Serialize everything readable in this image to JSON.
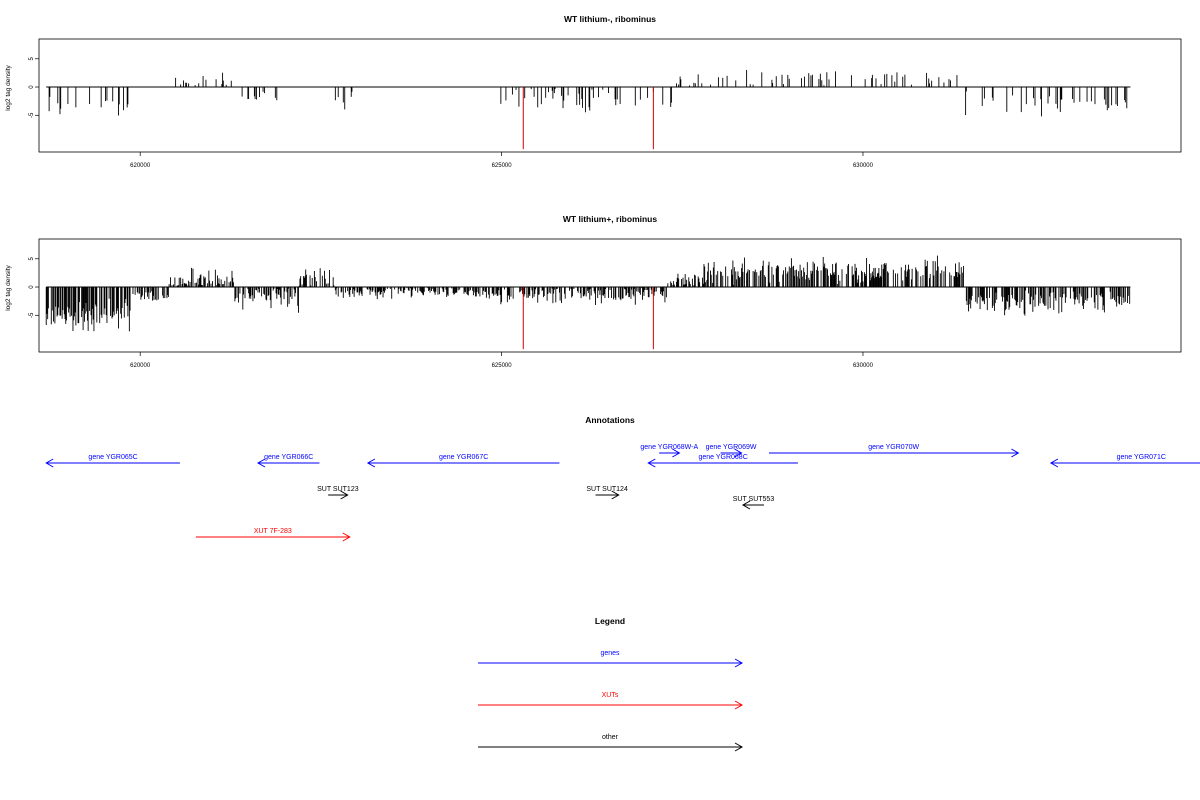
{
  "colors": {
    "gene": "#0000ff",
    "xut": "#ff0000",
    "other": "#000000",
    "signal": "#000000",
    "marker": "#d00000"
  },
  "chart_data": [
    {
      "type": "bar",
      "title": "WT lithium-, ribominus",
      "ylabel": "log2 tag density",
      "xlim": [
        618600,
        634400
      ],
      "ylim": [
        -11.5,
        8.5
      ],
      "x_ticks": [
        620000,
        625000,
        630000
      ],
      "x_tick_labels": [
        "620000",
        "625000",
        "630000"
      ],
      "y_ticks": [
        -5,
        0,
        5
      ],
      "y_tick_labels": [
        "-5",
        "0",
        "5"
      ],
      "x_range": [
        618700,
        633700
      ],
      "density": 0.16,
      "seed": 7,
      "segments": [
        [
          618700,
          619850,
          -3.8,
          1.3
        ],
        [
          619850,
          620450,
          0,
          0
        ],
        [
          620450,
          621300,
          0.9,
          1.0
        ],
        [
          621300,
          621900,
          -2.2,
          1.2
        ],
        [
          621900,
          622600,
          0,
          0
        ],
        [
          622600,
          623000,
          -2.0,
          1.0
        ],
        [
          623000,
          624950,
          0,
          0
        ],
        [
          624950,
          627400,
          -2.0,
          1.5
        ],
        [
          627400,
          628200,
          1.2,
          1.2
        ],
        [
          628200,
          631400,
          1.8,
          1.0
        ],
        [
          631400,
          633700,
          -2.8,
          1.1
        ]
      ],
      "marker_positions": [
        625300,
        627100
      ],
      "marker_value": -11.0
    },
    {
      "type": "bar",
      "title": "WT lithium+, ribominus",
      "ylabel": "log2 tag density",
      "xlim": [
        618600,
        634400
      ],
      "ylim": [
        -11.5,
        8.5
      ],
      "x_ticks": [
        620000,
        625000,
        630000
      ],
      "x_tick_labels": [
        "620000",
        "625000",
        "630000"
      ],
      "y_ticks": [
        -5,
        0,
        5
      ],
      "y_tick_labels": [
        "-5",
        "0",
        "5"
      ],
      "x_range": [
        618700,
        633700
      ],
      "density": 0.6,
      "seed": 21,
      "segments": [
        [
          618700,
          619900,
          -5.0,
          1.6
        ],
        [
          619900,
          620400,
          -1.5,
          0.8
        ],
        [
          620400,
          621300,
          1.0,
          1.2
        ],
        [
          621300,
          622200,
          -1.6,
          1.4
        ],
        [
          622200,
          622700,
          1.6,
          1.4
        ],
        [
          622700,
          624900,
          -1.0,
          0.6
        ],
        [
          624900,
          627300,
          -1.3,
          1.0
        ],
        [
          627300,
          627800,
          0.8,
          1.0
        ],
        [
          627800,
          631400,
          2.8,
          1.3
        ],
        [
          631400,
          633700,
          -2.6,
          1.2
        ]
      ],
      "marker_positions": [
        625300,
        627100
      ],
      "marker_value": -11.0
    }
  ],
  "annotations": {
    "title": "Annotations",
    "genes": [
      {
        "label": "gene YGR065C",
        "start": 618700,
        "end": 620550,
        "strand": "-"
      },
      {
        "label": "gene YGR066C",
        "start": 621630,
        "end": 622480,
        "strand": "-"
      },
      {
        "label": "gene YGR067C",
        "start": 623150,
        "end": 625800,
        "strand": "-"
      },
      {
        "label": "gene YGR068C",
        "start": 627030,
        "end": 629100,
        "strand": "-"
      },
      {
        "label": "gene YGR068W-A",
        "start": 627180,
        "end": 627460,
        "strand": "+"
      },
      {
        "label": "gene YGR069W",
        "start": 628030,
        "end": 628320,
        "strand": "+"
      },
      {
        "label": "gene YGR070W",
        "start": 628700,
        "end": 632150,
        "strand": "+"
      },
      {
        "label": "gene YGR071C",
        "start": 632600,
        "end": 635100,
        "strand": "-"
      }
    ],
    "xuts": [
      {
        "label": "XUT 7F-283",
        "start": 620770,
        "end": 622900,
        "strand": "+"
      }
    ],
    "others": [
      {
        "label": "SUT SUT123",
        "start": 622600,
        "end": 622870,
        "strand": "+"
      },
      {
        "label": "SUT SUT124",
        "start": 626300,
        "end": 626620,
        "strand": "+"
      },
      {
        "label": "SUT SUT553",
        "start": 628340,
        "end": 628630,
        "strand": "-"
      }
    ]
  },
  "legend": {
    "title": "Legend",
    "items": [
      {
        "label": "genes",
        "color": "#0000ff"
      },
      {
        "label": "XUTs",
        "color": "#ff0000"
      },
      {
        "label": "other",
        "color": "#000000"
      }
    ]
  }
}
